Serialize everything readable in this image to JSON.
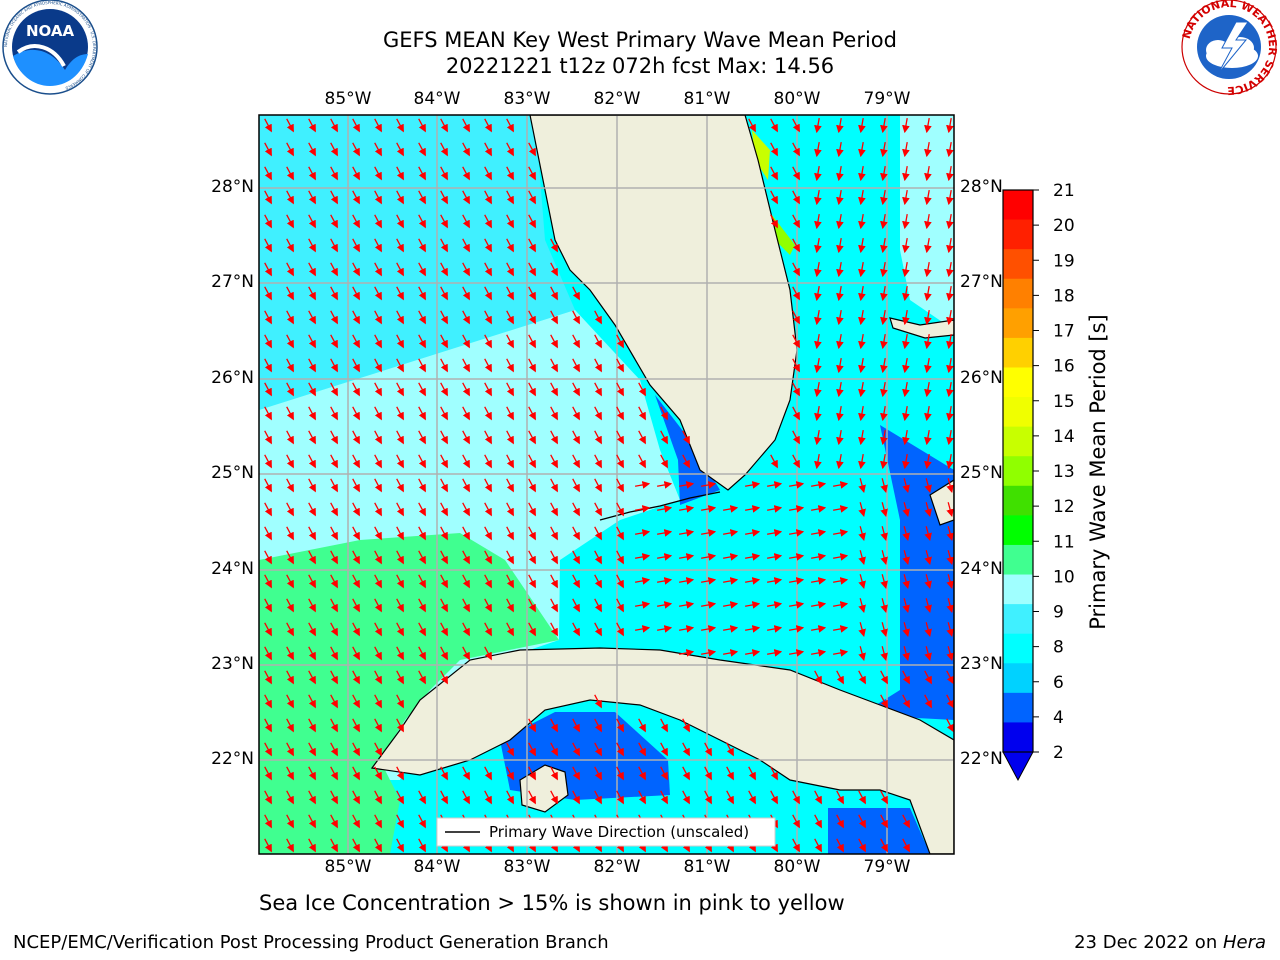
{
  "title": {
    "line1": "GEFS MEAN Key West Primary Wave Mean Period",
    "line2": "20221221 t12z 072h fcst   Max: 14.56"
  },
  "logos": {
    "left": "NOAA",
    "left_ring": "NATIONAL OCEANIC AND ATMOSPHERIC ADMINISTRATION · U.S. DEPARTMENT OF COMMERCE",
    "right_ring": "NATIONAL WEATHER SERVICE"
  },
  "axes": {
    "lon_labels": [
      "85°W",
      "84°W",
      "83°W",
      "82°W",
      "81°W",
      "80°W",
      "79°W"
    ],
    "lat_labels": [
      "28°N",
      "27°N",
      "26°N",
      "25°N",
      "24°N",
      "23°N",
      "22°N"
    ]
  },
  "legend": {
    "label": "Primary Wave Direction (unscaled)"
  },
  "colorbar": {
    "label": "Primary Wave Mean Period [s]",
    "ticks": [
      "21",
      "20",
      "19",
      "18",
      "17",
      "16",
      "15",
      "14",
      "13",
      "12",
      "11",
      "10",
      "9",
      "8",
      "6",
      "4",
      "2"
    ],
    "colors": [
      "#0000ee",
      "#0064ff",
      "#00d2ff",
      "#00ffff",
      "#40f0ff",
      "#a0ffff",
      "#40ff90",
      "#00ff00",
      "#40e000",
      "#90ff00",
      "#c8ff00",
      "#f0ff00",
      "#ffff00",
      "#ffd000",
      "#ffa000",
      "#ff8000",
      "#ff5000",
      "#ff2000",
      "#ff0000"
    ]
  },
  "caption": "Sea Ice Concentration > 15% is shown in pink to yellow",
  "footer": {
    "left": "NCEP/EMC/Verification Post Processing Product Generation Branch",
    "right_date": "23 Dec 2022 on ",
    "right_host": "Hera"
  }
}
